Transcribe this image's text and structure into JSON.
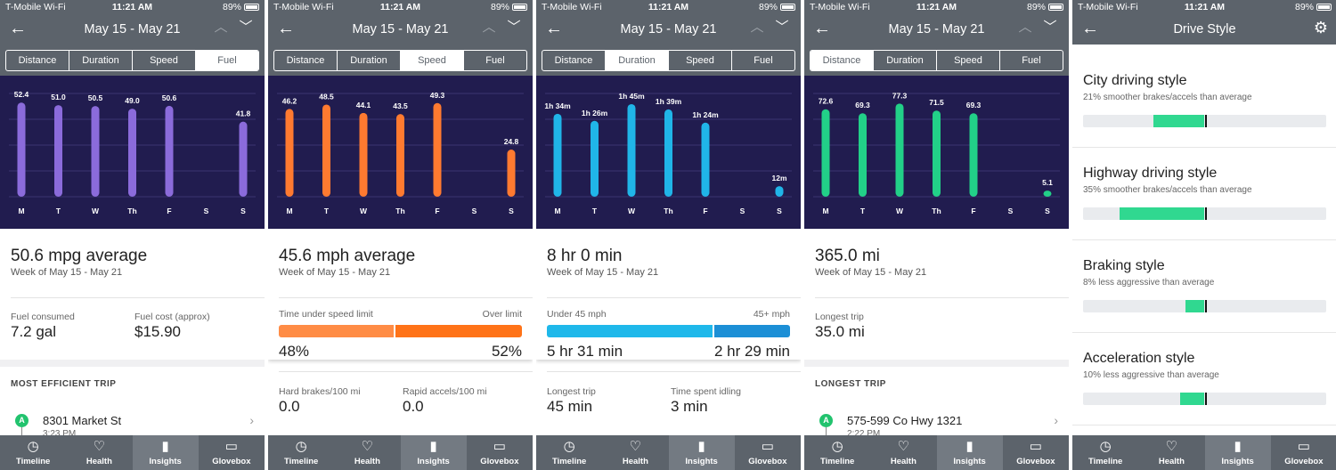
{
  "status": {
    "carrier": "T-Mobile Wi-Fi",
    "time": "11:21 AM",
    "battery": "89%"
  },
  "nav": {
    "date_range": "May 15 - May 21",
    "back_icon": "back-arrow-icon",
    "prev_icon": "chevron-up-icon",
    "next_icon": "chevron-down-icon"
  },
  "tabs": [
    "Distance",
    "Duration",
    "Speed",
    "Fuel"
  ],
  "tabbar": [
    "Timeline",
    "Health",
    "Insights",
    "Glovebox"
  ],
  "screens": {
    "fuel": {
      "active_tab": "Fuel",
      "summary": {
        "big": "50.6 mpg average",
        "sub": "Week of May 15 - May 21"
      },
      "stats": [
        {
          "label": "Fuel consumed",
          "value": "7.2 gal"
        },
        {
          "label": "Fuel cost (approx)",
          "value": "$15.90"
        }
      ],
      "section_title": "MOST EFFICIENT TRIP",
      "trip": {
        "badge": "A",
        "address": "8301 Market St",
        "time": "3:23 PM"
      }
    },
    "speed": {
      "active_tab": "Speed",
      "summary": {
        "big": "45.6 mph average",
        "sub": "Week of May 15 - May 21"
      },
      "split": {
        "left_label": "Time under speed limit",
        "right_label": "Over limit",
        "left_value": "48%",
        "right_value": "52%",
        "left_fraction": 0.48
      },
      "stats": [
        {
          "label": "Hard brakes/100 mi",
          "value": "0.0"
        },
        {
          "label": "Rapid accels/100 mi",
          "value": "0.0"
        }
      ]
    },
    "duration": {
      "active_tab": "Duration",
      "summary": {
        "big": "8 hr 0 min",
        "sub": "Week of May 15 - May 21"
      },
      "split": {
        "left_label": "Under 45 mph",
        "right_label": "45+ mph",
        "left_value": "5 hr 31 min",
        "right_value": "2 hr 29 min",
        "left_fraction": 0.69
      },
      "stats": [
        {
          "label": "Longest trip",
          "value": "45 min"
        },
        {
          "label": "Time spent idling",
          "value": "3 min"
        }
      ]
    },
    "distance": {
      "active_tab": "Distance",
      "summary": {
        "big": "365.0 mi",
        "sub": "Week of May 15 - May 21"
      },
      "stats": [
        {
          "label": "Longest trip",
          "value": "35.0 mi"
        }
      ],
      "section_title": "LONGEST TRIP",
      "trip": {
        "badge": "A",
        "address": "575-599 Co Hwy 1321",
        "time": "2:22 PM"
      }
    },
    "drive_style": {
      "title": "Drive Style",
      "items": [
        {
          "title": "City driving style",
          "sub": "21% smoother brakes/accels than average",
          "fill_from": 0.29,
          "fill_to": 0.5
        },
        {
          "title": "Highway driving style",
          "sub": "35% smoother brakes/accels than average",
          "fill_from": 0.15,
          "fill_to": 0.5
        },
        {
          "title": "Braking style",
          "sub": "8% less aggressive than average",
          "fill_from": 0.42,
          "fill_to": 0.5
        },
        {
          "title": "Acceleration style",
          "sub": "10% less aggressive than average",
          "fill_from": 0.4,
          "fill_to": 0.5
        }
      ]
    }
  },
  "colors": {
    "header": "#5c636b",
    "chart_bg": "#211c4f",
    "fuel": "#8b6bdb",
    "speed": "#ff7a30",
    "duration": "#20b5e8",
    "distance": "#22d088",
    "style_fill": "#30d890"
  },
  "chart_data": [
    {
      "type": "bar",
      "title": "Fuel",
      "categories": [
        "M",
        "T",
        "W",
        "Th",
        "F",
        "S",
        "S"
      ],
      "values": [
        52.4,
        51.0,
        50.5,
        49.0,
        50.6,
        null,
        41.8
      ],
      "labels": [
        "52.4",
        "51.0",
        "50.5",
        "49.0",
        "50.6",
        "",
        "41.8"
      ],
      "ylim": [
        0,
        55
      ],
      "grid": true
    },
    {
      "type": "bar",
      "title": "Speed",
      "categories": [
        "M",
        "T",
        "W",
        "Th",
        "F",
        "S",
        "S"
      ],
      "values": [
        46.2,
        48.5,
        44.1,
        43.5,
        49.3,
        null,
        24.8
      ],
      "labels": [
        "46.2",
        "48.5",
        "44.1",
        "43.5",
        "49.3",
        "",
        "24.8"
      ],
      "ylim": [
        0,
        52
      ],
      "grid": true
    },
    {
      "type": "bar",
      "title": "Duration",
      "categories": [
        "M",
        "T",
        "W",
        "Th",
        "F",
        "S",
        "S"
      ],
      "values": [
        94,
        86,
        105,
        99,
        84,
        null,
        12
      ],
      "labels": [
        "1h 34m",
        "1h 26m",
        "1h 45m",
        "1h 39m",
        "1h 24m",
        "",
        "12m"
      ],
      "ylim": [
        0,
        112
      ],
      "grid": true
    },
    {
      "type": "bar",
      "title": "Distance",
      "categories": [
        "M",
        "T",
        "W",
        "Th",
        "F",
        "S",
        "S"
      ],
      "values": [
        72.6,
        69.3,
        77.3,
        71.5,
        69.3,
        null,
        5.1
      ],
      "labels": [
        "72.6",
        "69.3",
        "77.3",
        "71.5",
        "69.3",
        "",
        "5.1"
      ],
      "ylim": [
        0,
        82
      ],
      "grid": true
    }
  ]
}
